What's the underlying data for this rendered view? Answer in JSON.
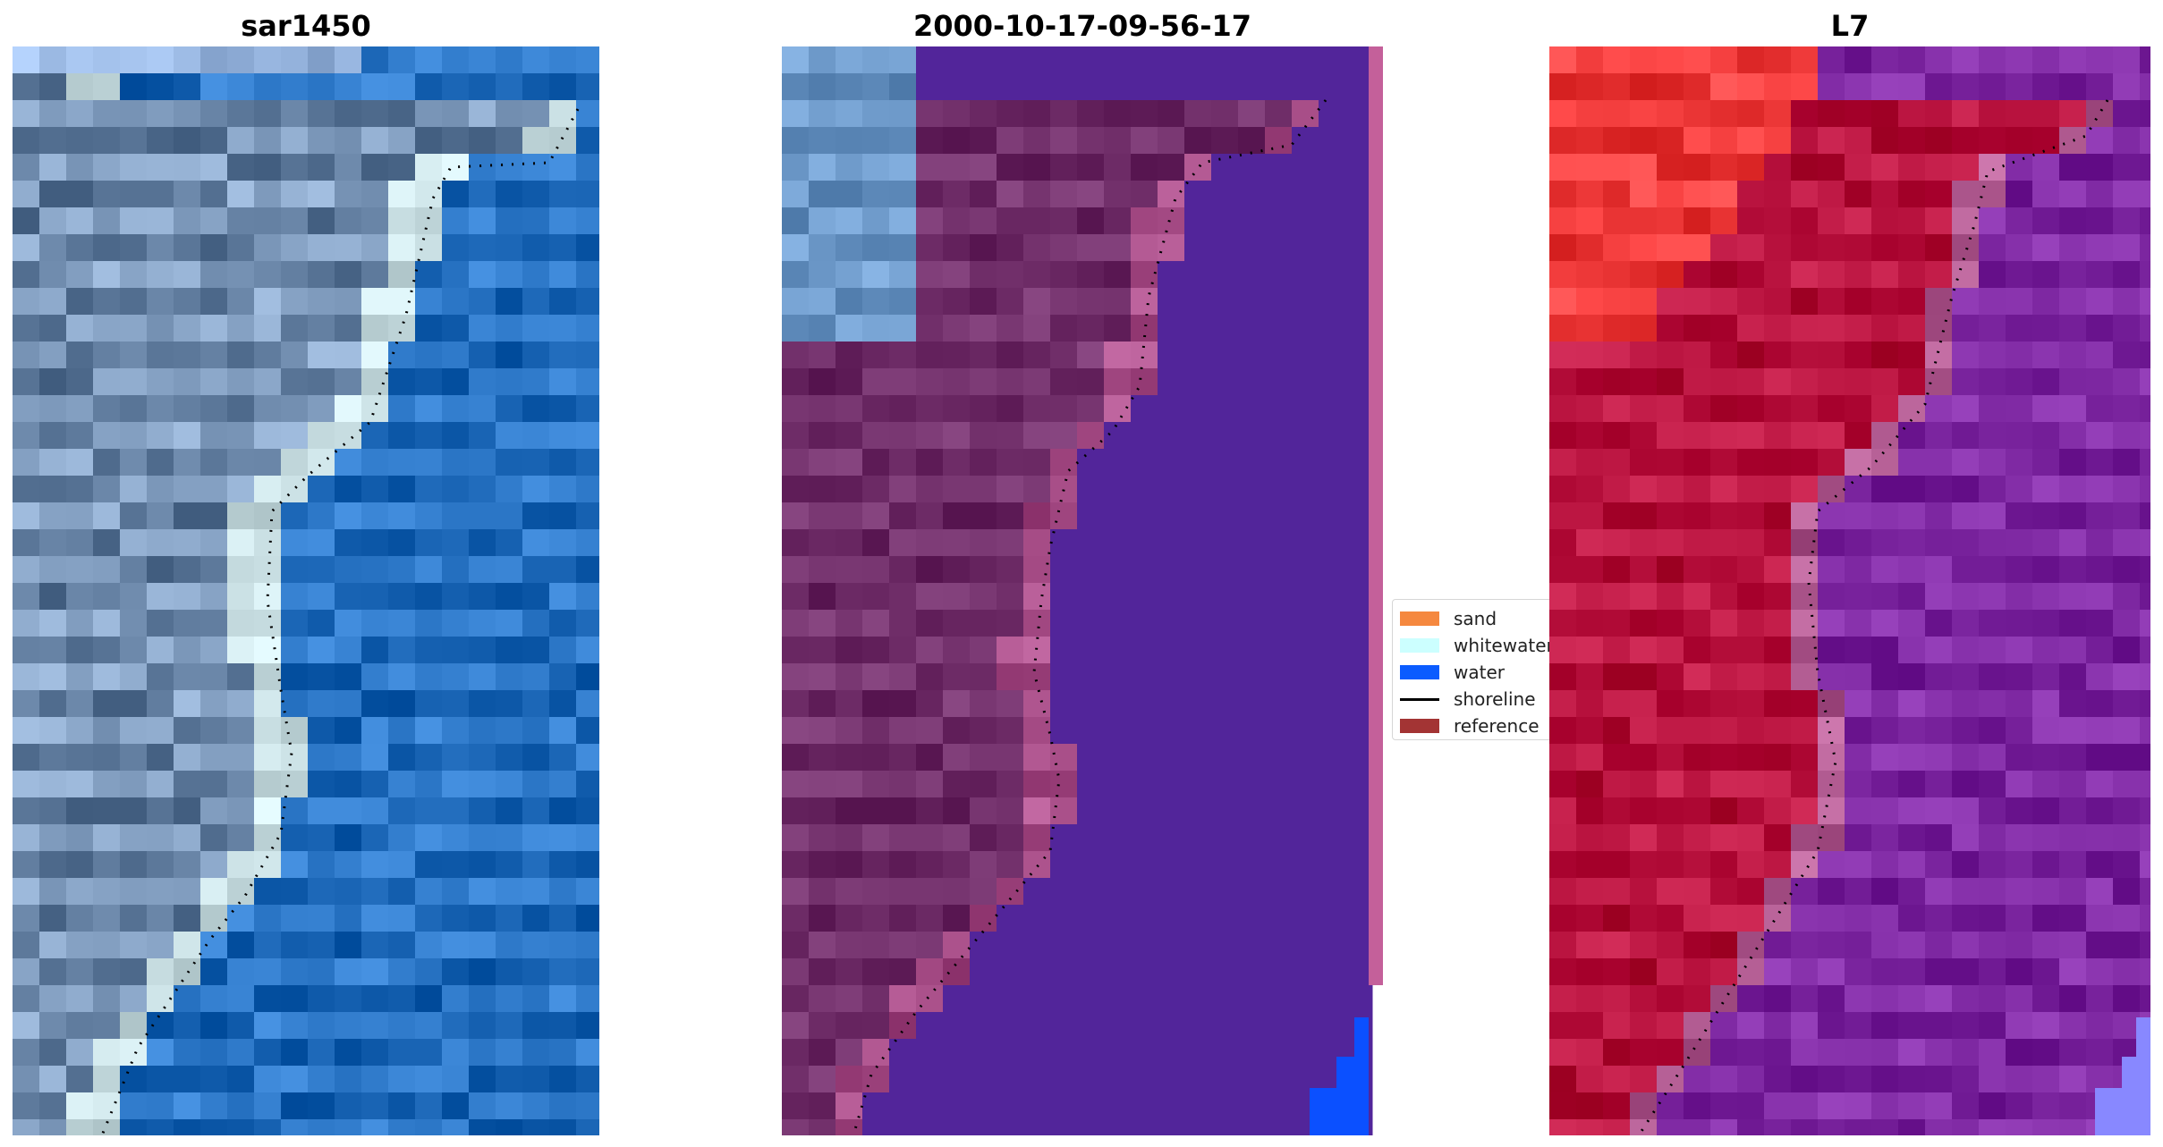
{
  "panels": [
    {
      "title": "sar1450",
      "style": "rgb"
    },
    {
      "title": "2000-10-17-09-56-17",
      "style": "classified"
    },
    {
      "title": "L7",
      "style": "false-color"
    }
  ],
  "legend": {
    "placement": "center-right of middle panel",
    "items": [
      {
        "label": "sand",
        "color": "#f5883f",
        "kind": "patch"
      },
      {
        "label": "whitewater",
        "color": "#ccffff",
        "kind": "patch"
      },
      {
        "label": "water",
        "color": "#0b5cff",
        "kind": "patch"
      },
      {
        "label": "shoreline",
        "color": "#000000",
        "kind": "line"
      },
      {
        "label": "reference",
        "color": "#a33434",
        "kind": "patch"
      }
    ]
  },
  "colors": {
    "land_rgb": "#8aa6c8",
    "sea_rgb": "#3580d0",
    "whitewater_band": "#d8eef2",
    "land_classified": "#7c3a75",
    "water_classified": "#52259a",
    "right_edge_strip": "#c4609a",
    "water_corner": "#0b50ff",
    "land_false_color": "#c41e4a",
    "land_bright_red": "#ff4a4a",
    "sea_false_color": "#8a34ae",
    "corner_false_color": "#8888ff"
  }
}
